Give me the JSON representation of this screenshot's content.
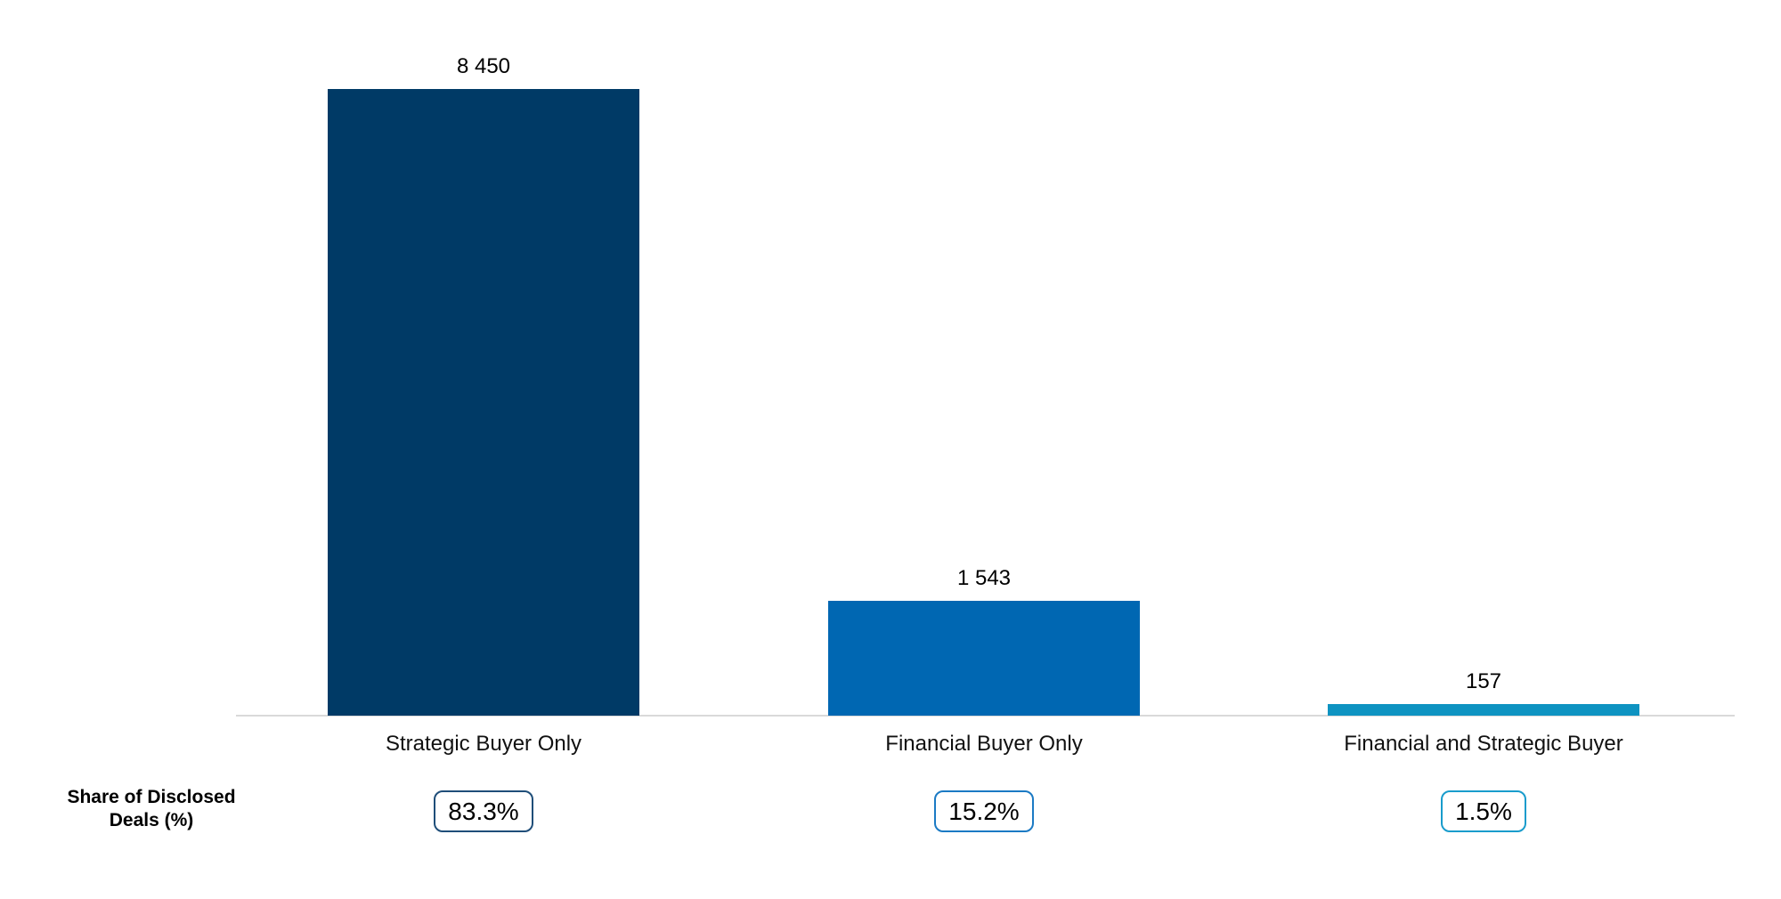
{
  "chart_data": {
    "type": "bar",
    "title": "",
    "xlabel": "",
    "ylabel": "",
    "ylim": [
      0,
      8450
    ],
    "grid": false,
    "legend": false,
    "categories": [
      "Strategic Buyer Only",
      "Financial Buyer Only",
      "Financial and Strategic Buyer"
    ],
    "values": [
      8450,
      1543,
      157
    ],
    "value_labels": [
      "8 450",
      "1 543",
      "157"
    ],
    "bar_colors": [
      "#003a66",
      "#0067b2",
      "#0e93c1"
    ],
    "share_row": {
      "label_line1": "Share of Disclosed",
      "label_line2": "Deals (%)",
      "values": [
        "83.3%",
        "15.2%",
        "1.5%"
      ],
      "badge_border_colors": [
        "#1f4e79",
        "#1b7ac4",
        "#199ccc"
      ]
    },
    "baseline_color": "#d9d9d9"
  }
}
